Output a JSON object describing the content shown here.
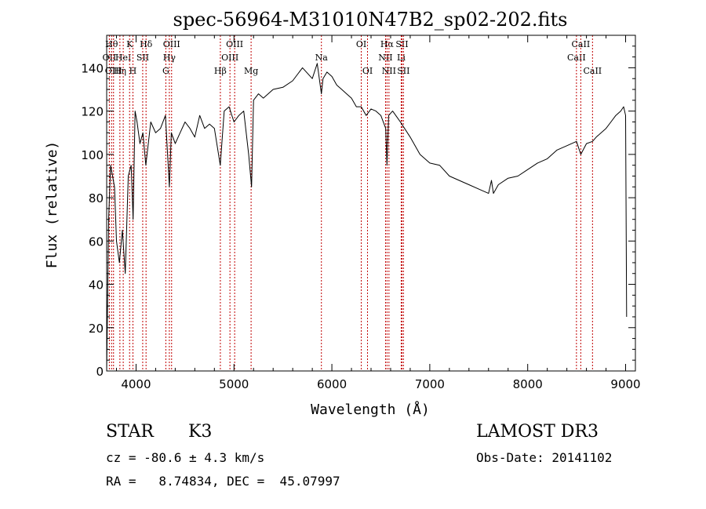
{
  "chart_data": {
    "type": "line",
    "title": "spec-56964-M31010N47B2_sp02-202.fits",
    "xlabel": "Wavelength (Å)",
    "ylabel": "Flux (relative)",
    "xlim": [
      3700,
      9100
    ],
    "ylim": [
      0,
      155
    ],
    "xticks": [
      4000,
      5000,
      6000,
      7000,
      8000,
      9000
    ],
    "yticks": [
      0,
      20,
      40,
      60,
      80,
      100,
      120,
      140
    ],
    "grid": false,
    "series": [
      {
        "name": "spectrum",
        "x": [
          3700,
          3720,
          3740,
          3760,
          3780,
          3800,
          3830,
          3860,
          3890,
          3920,
          3950,
          3970,
          3990,
          4010,
          4040,
          4070,
          4100,
          4150,
          4200,
          4250,
          4300,
          4340,
          4360,
          4400,
          4450,
          4500,
          4550,
          4600,
          4650,
          4700,
          4750,
          4800,
          4860,
          4900,
          4950,
          5000,
          5050,
          5100,
          5150,
          5180,
          5200,
          5250,
          5300,
          5400,
          5500,
          5600,
          5700,
          5800,
          5850,
          5893,
          5910,
          5950,
          6000,
          6050,
          6100,
          6150,
          6200,
          6250,
          6300,
          6350,
          6400,
          6450,
          6500,
          6550,
          6563,
          6580,
          6620,
          6700,
          6800,
          6900,
          7000,
          7100,
          7200,
          7300,
          7400,
          7500,
          7600,
          7630,
          7650,
          7700,
          7800,
          7900,
          8000,
          8100,
          8200,
          8300,
          8400,
          8498,
          8542,
          8600,
          8662,
          8700,
          8800,
          8850,
          8900,
          8950,
          8980,
          9000,
          9010
        ],
        "values": [
          0,
          70,
          95,
          90,
          85,
          60,
          50,
          65,
          45,
          90,
          95,
          70,
          120,
          115,
          105,
          110,
          95,
          115,
          110,
          112,
          118,
          85,
          110,
          105,
          110,
          115,
          112,
          108,
          118,
          112,
          114,
          112,
          95,
          120,
          122,
          115,
          118,
          120,
          100,
          85,
          125,
          128,
          126,
          130,
          131,
          134,
          140,
          135,
          142,
          128,
          135,
          138,
          136,
          132,
          130,
          128,
          126,
          122,
          122,
          118,
          121,
          120,
          118,
          112,
          95,
          118,
          120,
          115,
          108,
          100,
          96,
          95,
          90,
          88,
          86,
          84,
          82,
          88,
          82,
          86,
          89,
          90,
          93,
          96,
          98,
          102,
          104,
          106,
          100,
          105,
          106,
          108,
          112,
          115,
          118,
          120,
          122,
          118,
          25
        ]
      }
    ],
    "lines": [
      {
        "x": 3727,
        "label": "OII",
        "row": 1
      },
      {
        "x": 3750,
        "label": "Hθ",
        "row": 0
      },
      {
        "x": 3770,
        "label": "OIII",
        "row": 2
      },
      {
        "x": 3835,
        "label": "Hη",
        "row": 2
      },
      {
        "x": 3869,
        "label": "HeI",
        "row": 1
      },
      {
        "x": 3934,
        "label": "K",
        "row": 0
      },
      {
        "x": 3968,
        "label": "H",
        "row": 2
      },
      {
        "x": 4068,
        "label": "SII",
        "row": 1
      },
      {
        "x": 4102,
        "label": "Hδ",
        "row": 0
      },
      {
        "x": 4304,
        "label": "G",
        "row": 2
      },
      {
        "x": 4340,
        "label": "Hγ",
        "row": 1
      },
      {
        "x": 4363,
        "label": "OIII",
        "row": 0
      },
      {
        "x": 4861,
        "label": "Hβ",
        "row": 2
      },
      {
        "x": 4959,
        "label": "OIII",
        "row": 1
      },
      {
        "x": 5007,
        "label": "OIII",
        "row": 0
      },
      {
        "x": 5175,
        "label": "Mg",
        "row": 2
      },
      {
        "x": 5893,
        "label": "Na",
        "row": 1
      },
      {
        "x": 6300,
        "label": "OI",
        "row": 0
      },
      {
        "x": 6364,
        "label": "OI",
        "row": 2
      },
      {
        "x": 6548,
        "label": "NII",
        "row": 1
      },
      {
        "x": 6563,
        "label": "Hα",
        "row": 0
      },
      {
        "x": 6583,
        "label": "NII",
        "row": 2
      },
      {
        "x": 6708,
        "label": "Li",
        "row": 1
      },
      {
        "x": 6716,
        "label": "SII",
        "row": 0
      },
      {
        "x": 6731,
        "label": "SII",
        "row": 2
      },
      {
        "x": 8498,
        "label": "CaII",
        "row": 1
      },
      {
        "x": 8542,
        "label": "CaII",
        "row": 0
      },
      {
        "x": 8662,
        "label": "CaII",
        "row": 2
      }
    ]
  },
  "info": {
    "class_label": "STAR",
    "subclass": "K3",
    "survey": "LAMOST DR3",
    "cz": "cz = -80.6 ± 4.3 km/s",
    "obs_date": "Obs-Date: 20141102",
    "coords": "RA =   8.74834, DEC =  45.07997"
  }
}
